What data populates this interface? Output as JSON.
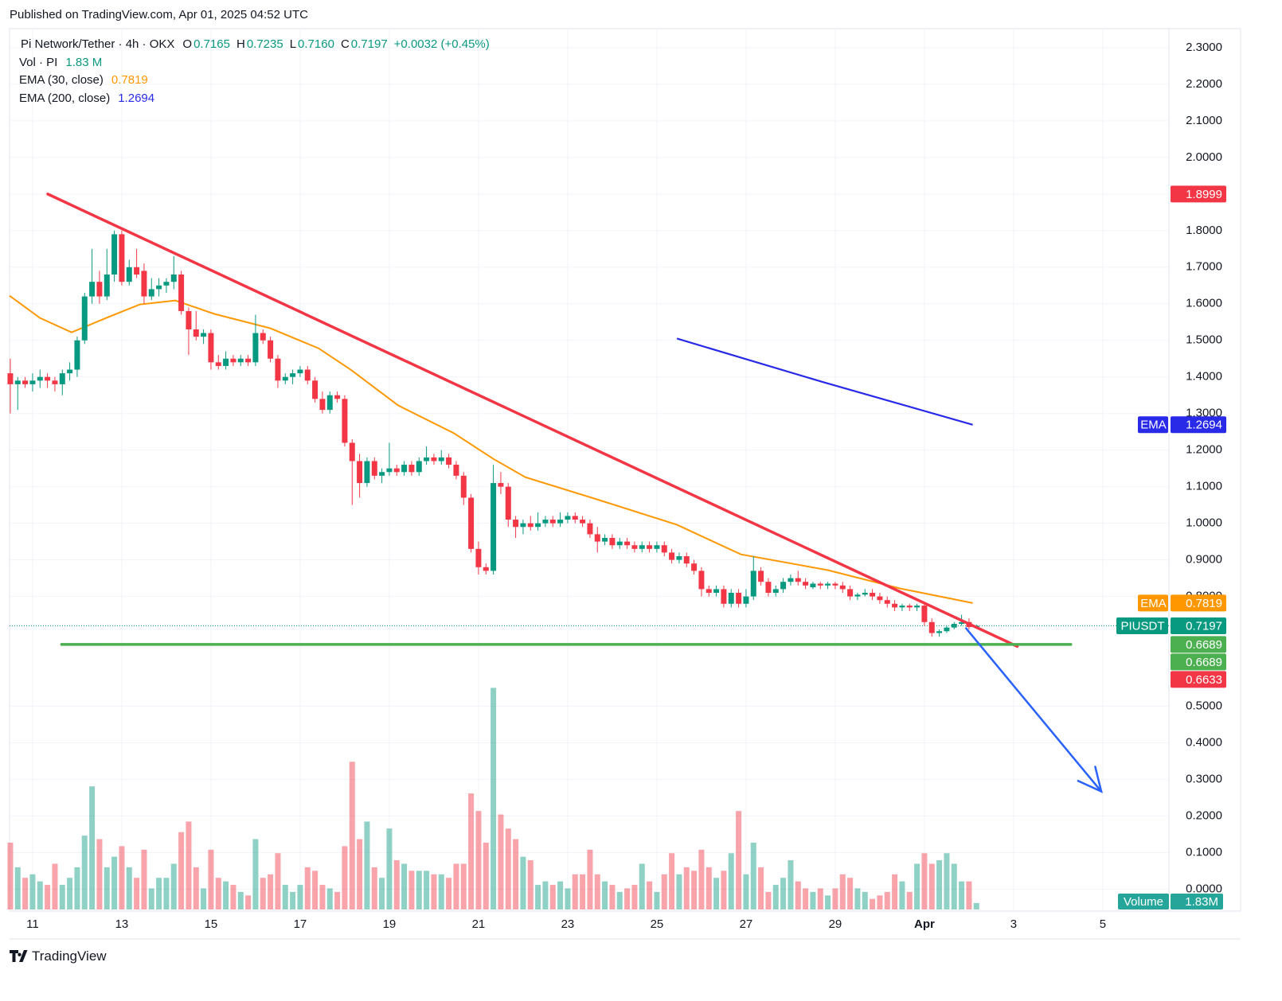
{
  "header": {
    "published": "Published on TradingView.com, Apr 01, 2025 04:52 UTC",
    "brand": "TradingView"
  },
  "chart_data": {
    "type": "candlestick",
    "title": "Pi Network/Tether · 4h · OKX",
    "ohlc": [
      {
        "key": "O",
        "value": "0.7165"
      },
      {
        "key": "H",
        "value": "0.7235"
      },
      {
        "key": "L",
        "value": "0.7160"
      },
      {
        "key": "C",
        "value": "0.7197"
      }
    ],
    "change": "+0.0032 (+0.45%)",
    "studies": [
      {
        "name": "Vol · PI",
        "value": "1.83 M",
        "color": "#089981"
      },
      {
        "name": "EMA (30, close)",
        "value": "0.7819",
        "color": "#ff9800"
      },
      {
        "name": "EMA (200, close)",
        "value": "1.2694",
        "color": "#2929e8"
      }
    ],
    "up_color": "#089981",
    "down_color": "#f23645",
    "candles": [
      [
        1.41,
        1.45,
        1.3,
        1.38
      ],
      [
        1.38,
        1.4,
        1.31,
        1.39
      ],
      [
        1.39,
        1.4,
        1.37,
        1.38
      ],
      [
        1.38,
        1.41,
        1.36,
        1.39
      ],
      [
        1.39,
        1.42,
        1.37,
        1.4
      ],
      [
        1.4,
        1.41,
        1.37,
        1.39
      ],
      [
        1.39,
        1.4,
        1.36,
        1.38
      ],
      [
        1.38,
        1.42,
        1.35,
        1.41
      ],
      [
        1.41,
        1.44,
        1.39,
        1.42
      ],
      [
        1.42,
        1.51,
        1.4,
        1.5
      ],
      [
        1.5,
        1.63,
        1.49,
        1.62
      ],
      [
        1.62,
        1.75,
        1.6,
        1.66
      ],
      [
        1.66,
        1.69,
        1.6,
        1.62
      ],
      [
        1.62,
        1.75,
        1.61,
        1.68
      ],
      [
        1.68,
        1.8,
        1.66,
        1.79
      ],
      [
        1.79,
        1.8,
        1.65,
        1.66
      ],
      [
        1.66,
        1.72,
        1.65,
        1.7
      ],
      [
        1.7,
        1.75,
        1.67,
        1.68
      ],
      [
        1.69,
        1.71,
        1.6,
        1.62
      ],
      [
        1.62,
        1.67,
        1.61,
        1.64
      ],
      [
        1.64,
        1.67,
        1.62,
        1.65
      ],
      [
        1.65,
        1.67,
        1.63,
        1.66
      ],
      [
        1.66,
        1.73,
        1.64,
        1.68
      ],
      [
        1.68,
        1.69,
        1.57,
        1.58
      ],
      [
        1.58,
        1.59,
        1.46,
        1.53
      ],
      [
        1.53,
        1.58,
        1.5,
        1.51
      ],
      [
        1.51,
        1.53,
        1.49,
        1.52
      ],
      [
        1.52,
        1.53,
        1.42,
        1.44
      ],
      [
        1.44,
        1.46,
        1.42,
        1.43
      ],
      [
        1.43,
        1.47,
        1.42,
        1.45
      ],
      [
        1.45,
        1.46,
        1.43,
        1.44
      ],
      [
        1.44,
        1.46,
        1.43,
        1.45
      ],
      [
        1.45,
        1.46,
        1.43,
        1.44
      ],
      [
        1.44,
        1.57,
        1.43,
        1.52
      ],
      [
        1.52,
        1.53,
        1.49,
        1.5
      ],
      [
        1.5,
        1.51,
        1.44,
        1.45
      ],
      [
        1.45,
        1.46,
        1.37,
        1.39
      ],
      [
        1.39,
        1.41,
        1.38,
        1.4
      ],
      [
        1.4,
        1.42,
        1.38,
        1.41
      ],
      [
        1.41,
        1.43,
        1.4,
        1.42
      ],
      [
        1.42,
        1.43,
        1.38,
        1.39
      ],
      [
        1.39,
        1.4,
        1.33,
        1.34
      ],
      [
        1.34,
        1.36,
        1.3,
        1.31
      ],
      [
        1.31,
        1.36,
        1.3,
        1.35
      ],
      [
        1.35,
        1.36,
        1.33,
        1.34
      ],
      [
        1.34,
        1.35,
        1.21,
        1.22
      ],
      [
        1.22,
        1.23,
        1.05,
        1.17
      ],
      [
        1.17,
        1.19,
        1.07,
        1.11
      ],
      [
        1.11,
        1.18,
        1.1,
        1.17
      ],
      [
        1.17,
        1.18,
        1.12,
        1.13
      ],
      [
        1.13,
        1.15,
        1.11,
        1.14
      ],
      [
        1.14,
        1.22,
        1.13,
        1.15
      ],
      [
        1.15,
        1.16,
        1.13,
        1.14
      ],
      [
        1.14,
        1.17,
        1.13,
        1.16
      ],
      [
        1.16,
        1.17,
        1.13,
        1.14
      ],
      [
        1.14,
        1.18,
        1.13,
        1.17
      ],
      [
        1.17,
        1.21,
        1.16,
        1.18
      ],
      [
        1.18,
        1.19,
        1.16,
        1.17
      ],
      [
        1.17,
        1.2,
        1.16,
        1.18
      ],
      [
        1.18,
        1.19,
        1.15,
        1.16
      ],
      [
        1.16,
        1.17,
        1.12,
        1.13
      ],
      [
        1.13,
        1.14,
        1.05,
        1.07
      ],
      [
        1.07,
        1.08,
        0.92,
        0.93
      ],
      [
        0.93,
        0.95,
        0.86,
        0.88
      ],
      [
        0.88,
        0.89,
        0.86,
        0.87
      ],
      [
        0.87,
        1.16,
        0.86,
        1.11
      ],
      [
        1.11,
        1.14,
        1.08,
        1.1
      ],
      [
        1.1,
        1.11,
        0.99,
        1.01
      ],
      [
        1.01,
        1.02,
        0.96,
        0.99
      ],
      [
        0.99,
        1.01,
        0.97,
        1.0
      ],
      [
        1.0,
        1.02,
        0.98,
        0.99
      ],
      [
        0.99,
        1.03,
        0.98,
        1.0
      ],
      [
        1.0,
        1.02,
        0.99,
        1.01
      ],
      [
        1.01,
        1.02,
        0.99,
        1.0
      ],
      [
        1.0,
        1.03,
        0.99,
        1.01
      ],
      [
        1.01,
        1.03,
        1.0,
        1.02
      ],
      [
        1.02,
        1.03,
        1.0,
        1.01
      ],
      [
        1.01,
        1.02,
        0.99,
        1.0
      ],
      [
        1.0,
        1.01,
        0.96,
        0.97
      ],
      [
        0.97,
        0.99,
        0.92,
        0.95
      ],
      [
        0.95,
        0.97,
        0.94,
        0.96
      ],
      [
        0.96,
        0.97,
        0.93,
        0.94
      ],
      [
        0.94,
        0.96,
        0.93,
        0.95
      ],
      [
        0.95,
        0.96,
        0.93,
        0.94
      ],
      [
        0.94,
        0.95,
        0.92,
        0.93
      ],
      [
        0.93,
        0.95,
        0.92,
        0.94
      ],
      [
        0.94,
        0.95,
        0.92,
        0.93
      ],
      [
        0.93,
        0.95,
        0.92,
        0.94
      ],
      [
        0.94,
        0.95,
        0.91,
        0.92
      ],
      [
        0.92,
        0.93,
        0.89,
        0.9
      ],
      [
        0.9,
        0.92,
        0.89,
        0.91
      ],
      [
        0.91,
        0.92,
        0.88,
        0.89
      ],
      [
        0.89,
        0.9,
        0.86,
        0.87
      ],
      [
        0.87,
        0.88,
        0.8,
        0.82
      ],
      [
        0.82,
        0.83,
        0.8,
        0.81
      ],
      [
        0.81,
        0.83,
        0.8,
        0.82
      ],
      [
        0.82,
        0.83,
        0.77,
        0.78
      ],
      [
        0.78,
        0.82,
        0.77,
        0.81
      ],
      [
        0.81,
        0.82,
        0.77,
        0.78
      ],
      [
        0.78,
        0.82,
        0.77,
        0.8
      ],
      [
        0.8,
        0.91,
        0.79,
        0.87
      ],
      [
        0.87,
        0.88,
        0.83,
        0.84
      ],
      [
        0.84,
        0.85,
        0.8,
        0.81
      ],
      [
        0.81,
        0.83,
        0.8,
        0.82
      ],
      [
        0.82,
        0.85,
        0.81,
        0.84
      ],
      [
        0.84,
        0.86,
        0.83,
        0.85
      ],
      [
        0.85,
        0.87,
        0.83,
        0.84
      ],
      [
        0.84,
        0.85,
        0.82,
        0.83
      ],
      [
        0.825,
        0.84,
        0.82,
        0.835
      ],
      [
        0.835,
        0.84,
        0.82,
        0.83
      ],
      [
        0.83,
        0.84,
        0.82,
        0.835
      ],
      [
        0.835,
        0.84,
        0.82,
        0.83
      ],
      [
        0.83,
        0.84,
        0.81,
        0.82
      ],
      [
        0.82,
        0.83,
        0.79,
        0.8
      ],
      [
        0.8,
        0.81,
        0.79,
        0.805
      ],
      [
        0.805,
        0.82,
        0.8,
        0.81
      ],
      [
        0.81,
        0.82,
        0.79,
        0.8
      ],
      [
        0.8,
        0.81,
        0.78,
        0.79
      ],
      [
        0.79,
        0.8,
        0.77,
        0.78
      ],
      [
        0.78,
        0.79,
        0.76,
        0.77
      ],
      [
        0.77,
        0.78,
        0.76,
        0.775
      ],
      [
        0.775,
        0.78,
        0.76,
        0.77
      ],
      [
        0.77,
        0.78,
        0.76,
        0.775
      ],
      [
        0.775,
        0.78,
        0.72,
        0.73
      ],
      [
        0.73,
        0.74,
        0.69,
        0.7
      ],
      [
        0.7,
        0.71,
        0.69,
        0.705
      ],
      [
        0.705,
        0.72,
        0.7,
        0.715
      ],
      [
        0.715,
        0.73,
        0.71,
        0.725
      ],
      [
        0.725,
        0.75,
        0.72,
        0.73
      ],
      [
        0.73,
        0.74,
        0.71,
        0.7165
      ],
      [
        0.7165,
        0.7235,
        0.716,
        0.7197
      ]
    ],
    "volumes": [
      19,
      12,
      9,
      10,
      8,
      7,
      13,
      7,
      9,
      12,
      21,
      35,
      20,
      12,
      15,
      18,
      12,
      9,
      17,
      6,
      9,
      9,
      13,
      22,
      25,
      12,
      6,
      17,
      9,
      8,
      7,
      5,
      4,
      20,
      9,
      10,
      16,
      7,
      5,
      7,
      12,
      11,
      7,
      6,
      5,
      18,
      42,
      20,
      25,
      12,
      9,
      23,
      14,
      13,
      11,
      11,
      11,
      10,
      10,
      9,
      13,
      13,
      33,
      28,
      19,
      63,
      27,
      23,
      20,
      15,
      14,
      7,
      8,
      7,
      8,
      6,
      10,
      10,
      17,
      10,
      8,
      7,
      5,
      6,
      7,
      13,
      8,
      5,
      10,
      16,
      10,
      12,
      11,
      17,
      12,
      9,
      11,
      16,
      28,
      10,
      19,
      12,
      5,
      7,
      9,
      14,
      8,
      6,
      5,
      6,
      4,
      6,
      10,
      9,
      6,
      5,
      3,
      4,
      5,
      10,
      8,
      5,
      13,
      16,
      13,
      14,
      16,
      13,
      8,
      8,
      1.83
    ],
    "vlim": [
      0,
      64
    ],
    "ema30": {
      "color": "#ff9800",
      "x": [
        -0.1,
        4,
        8.25,
        13.6,
        17.4,
        22.2,
        27.5,
        35,
        41.5,
        45.8,
        52.2,
        59.7,
        65,
        69.3,
        79,
        89.7,
        98.3,
        110,
        119.7,
        129.5
      ],
      "values": [
        1.622,
        1.561,
        1.522,
        1.567,
        1.598,
        1.609,
        1.572,
        1.533,
        1.478,
        1.42,
        1.322,
        1.246,
        1.176,
        1.126,
        1.065,
        0.996,
        0.915,
        0.872,
        0.822,
        0.7819
      ]
    },
    "ema200": {
      "color": "#2929e8",
      "x": [
        89.7,
        109.5,
        129.5
      ],
      "values": [
        1.505,
        1.385,
        1.2694
      ]
    },
    "drawings": [
      {
        "color": "#f23645",
        "x": [
          5.04,
          135.5
        ],
        "y": [
          1.8999,
          0.6633
        ]
      },
      {
        "color": "#4caf50",
        "x": [
          6.9,
          142.7
        ],
        "y": [
          0.6689,
          0.6689
        ]
      },
      {
        "color": "#2962ff",
        "x": [
          128.6,
          146.8
        ],
        "y": [
          0.713,
          0.267
        ],
        "arrow": true
      }
    ],
    "xlim": [
      -0.1,
      155.9
    ],
    "xticks": [
      {
        "value": 3,
        "label": "11"
      },
      {
        "value": 15,
        "label": "13"
      },
      {
        "value": 27,
        "label": "15"
      },
      {
        "value": 39,
        "label": "17"
      },
      {
        "value": 51,
        "label": "19"
      },
      {
        "value": 63,
        "label": "21"
      },
      {
        "value": 75,
        "label": "23"
      },
      {
        "value": 87,
        "label": "25"
      },
      {
        "value": 99,
        "label": "27"
      },
      {
        "value": 111,
        "label": "29"
      },
      {
        "value": 123,
        "label": "Apr"
      },
      {
        "value": 135,
        "label": "3"
      },
      {
        "value": 147,
        "label": "5"
      }
    ],
    "ylim": [
      -0.06,
      2.352
    ],
    "yticks": [
      {
        "value": 2.3,
        "label": "2.3000"
      },
      {
        "value": 2.2,
        "label": "2.2000"
      },
      {
        "value": 2.1,
        "label": "2.1000"
      },
      {
        "value": 2.0,
        "label": "2.0000"
      },
      {
        "value": 1.9,
        "label": "1.9000"
      },
      {
        "value": 1.8,
        "label": "1.8000"
      },
      {
        "value": 1.7,
        "label": "1.7000"
      },
      {
        "value": 1.6,
        "label": "1.6000"
      },
      {
        "value": 1.5,
        "label": "1.5000"
      },
      {
        "value": 1.4,
        "label": "1.4000"
      },
      {
        "value": 1.3,
        "label": "1.3000"
      },
      {
        "value": 1.2,
        "label": "1.2000"
      },
      {
        "value": 1.1,
        "label": "1.1000"
      },
      {
        "value": 1.0,
        "label": "1.0000"
      },
      {
        "value": 0.9,
        "label": "0.9000"
      },
      {
        "value": 0.8,
        "label": "0.8000"
      },
      {
        "value": 0.5,
        "label": "0.5000"
      },
      {
        "value": 0.4,
        "label": "0.4000"
      },
      {
        "value": 0.3,
        "label": "0.3000"
      },
      {
        "value": 0.2,
        "label": "0.2000"
      },
      {
        "value": 0.1,
        "label": "0.1000"
      },
      {
        "value": 0,
        "label": "0.0000"
      }
    ],
    "grid": true,
    "last_price": 0.7197,
    "badges": [
      {
        "value": 1.8999,
        "color": "#f23645"
      },
      {
        "tag": "EMA",
        "value": 1.2694,
        "color": "#2929e8"
      },
      {
        "tag": "EMA",
        "value": 0.7819,
        "color": "#ff9800"
      },
      {
        "tag": "PIUSDT",
        "value": 0.7197,
        "color": "#089981"
      },
      {
        "value": 0.6689,
        "color": "#4caf50"
      },
      {
        "value": 0.6689,
        "color": "#4caf50"
      },
      {
        "value": 0.6633,
        "color": "#f23645"
      }
    ],
    "volume_badge": {
      "tag": "Volume",
      "label": "1.83M",
      "color": "#26a69a"
    }
  }
}
